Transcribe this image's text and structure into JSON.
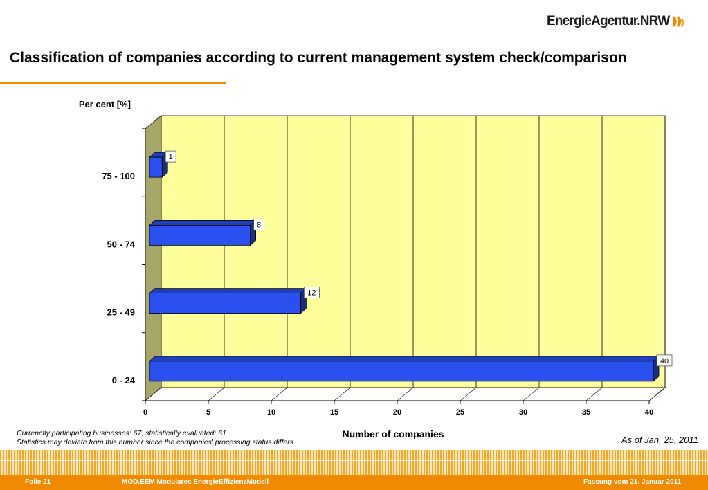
{
  "header": {
    "logo_text": "EnergieAgentur.NRW",
    "title": "Classification of companies according to current management system check/comparison"
  },
  "colors": {
    "accent": "#f08a00",
    "bar": "#2b50f0",
    "plot_background": "#ffff9c",
    "side_wall": "#a6a66a"
  },
  "chart_data": {
    "type": "bar",
    "orientation": "horizontal",
    "three_d": true,
    "categories": [
      "75 - 100",
      "50 - 74",
      "25 - 49",
      "0 - 24"
    ],
    "values": [
      1,
      8,
      12,
      40
    ],
    "data_labels": [
      "1",
      "8",
      "12",
      "40"
    ],
    "title": "",
    "ylabel": "Per cent [%]",
    "xlabel": "Number of companies",
    "xlim": [
      0,
      40
    ],
    "xticks": [
      "0",
      "5",
      "10",
      "15",
      "20",
      "25",
      "30",
      "35",
      "40"
    ],
    "grid": true
  },
  "notes": {
    "line1": "Currenctly participating businesses: 67, statistically evaluated: 61",
    "line2": "Statistics may deviate from this number since the companies' processing status differs."
  },
  "as_of": "As of Jan. 25, 2011",
  "footer": {
    "slide": "Folie 21",
    "model": "MOD.EEM Modulares EnergieEffizienzModell",
    "version": "Fassung vom 21. Januar 2011"
  }
}
